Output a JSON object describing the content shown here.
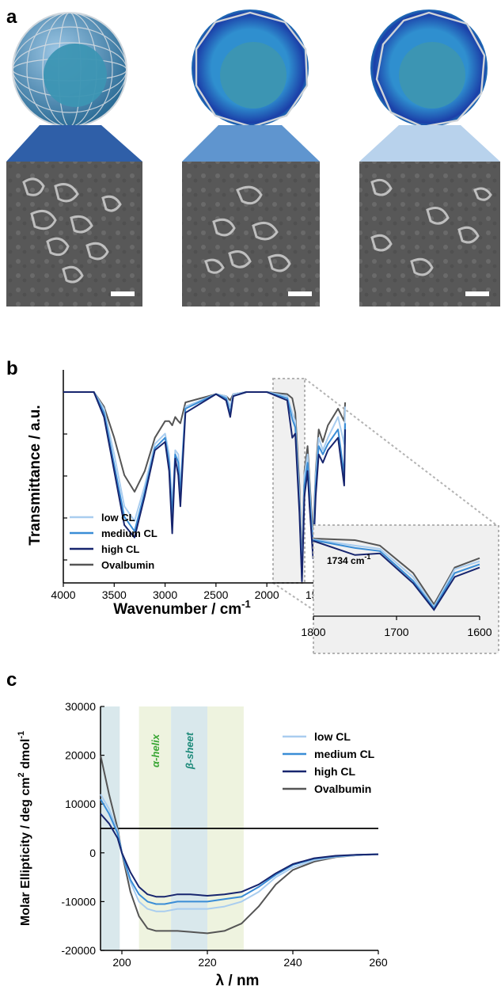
{
  "panel_labels": {
    "a": "a",
    "b": "b",
    "c": "c"
  },
  "colors": {
    "low": "#a9cdef",
    "medium": "#3a8dd6",
    "high": "#17256e",
    "ovalbumin": "#555555",
    "trap_low": "#2f5fa8",
    "trap_med": "#5f95cf",
    "trap_high": "#b8d2ec",
    "helix_band": "#eef3df",
    "sheet_band": "#d9e8ec",
    "helix_text": "#3aa635",
    "sheet_text": "#1d8a7a"
  },
  "chart_data": [
    {
      "id": "b",
      "type": "line",
      "ylabel": "Transmittance / a.u.",
      "xlabel": "Wavenumber / cm",
      "xlabel_sup": "-1",
      "xlim": [
        4000,
        1200
      ],
      "x_ticks": [
        4000,
        3500,
        3000,
        2500,
        2000,
        1500
      ],
      "legend": [
        "low CL",
        "medium CL",
        "high CL",
        "Ovalbumin"
      ],
      "inset": {
        "xlim": [
          1800,
          1600
        ],
        "x_ticks": [
          1800,
          1700,
          1600
        ],
        "annotation": "1734 cm",
        "annotation_sup": "-1"
      },
      "series": [
        {
          "name": "low CL",
          "x": [
            4000,
            3700,
            3600,
            3500,
            3400,
            3300,
            3200,
            3100,
            3000,
            2960,
            2930,
            2900,
            2870,
            2850,
            2800,
            2500,
            2400,
            2360,
            2330,
            2200,
            2000,
            1800,
            1750,
            1720,
            1680,
            1655,
            1630,
            1600,
            1580,
            1545,
            1520,
            1490,
            1450,
            1400,
            1300,
            1240,
            1230
          ],
          "y": [
            1.0,
            1.0,
            0.92,
            0.7,
            0.45,
            0.38,
            0.55,
            0.75,
            0.8,
            0.7,
            0.45,
            0.72,
            0.7,
            0.55,
            0.93,
            0.99,
            0.98,
            0.93,
            0.99,
            1.0,
            1.0,
            0.98,
            0.9,
            0.86,
            0.5,
            0.12,
            0.6,
            0.7,
            0.55,
            0.25,
            0.6,
            0.78,
            0.72,
            0.78,
            0.88,
            0.75,
            0.93
          ]
        },
        {
          "name": "medium CL",
          "x": [
            4000,
            3700,
            3600,
            3500,
            3400,
            3300,
            3200,
            3100,
            3000,
            2960,
            2930,
            2900,
            2870,
            2850,
            2800,
            2500,
            2400,
            2360,
            2330,
            2200,
            2000,
            1800,
            1750,
            1720,
            1680,
            1655,
            1630,
            1600,
            1580,
            1545,
            1520,
            1490,
            1450,
            1400,
            1300,
            1240,
            1230
          ],
          "y": [
            1.0,
            1.0,
            0.9,
            0.65,
            0.4,
            0.33,
            0.52,
            0.73,
            0.78,
            0.66,
            0.4,
            0.7,
            0.66,
            0.5,
            0.92,
            0.99,
            0.97,
            0.9,
            0.98,
            1.0,
            1.0,
            0.97,
            0.87,
            0.83,
            0.45,
            0.1,
            0.55,
            0.66,
            0.5,
            0.22,
            0.55,
            0.74,
            0.7,
            0.75,
            0.82,
            0.6,
            0.85
          ]
        },
        {
          "name": "high CL",
          "x": [
            4000,
            3700,
            3600,
            3500,
            3400,
            3300,
            3200,
            3100,
            3000,
            2960,
            2930,
            2900,
            2870,
            2850,
            2800,
            2500,
            2400,
            2360,
            2330,
            2200,
            2000,
            1800,
            1750,
            1720,
            1680,
            1655,
            1630,
            1600,
            1580,
            1545,
            1520,
            1490,
            1450,
            1400,
            1300,
            1240,
            1230
          ],
          "y": [
            1.0,
            1.0,
            0.88,
            0.62,
            0.36,
            0.3,
            0.5,
            0.72,
            0.76,
            0.62,
            0.32,
            0.68,
            0.6,
            0.45,
            0.9,
            0.99,
            0.96,
            0.88,
            0.98,
            1.0,
            1.0,
            0.96,
            0.78,
            0.8,
            0.42,
            0.08,
            0.5,
            0.62,
            0.45,
            0.2,
            0.5,
            0.7,
            0.66,
            0.72,
            0.78,
            0.55,
            0.82
          ]
        },
        {
          "name": "Ovalbumin",
          "x": [
            4000,
            3700,
            3600,
            3500,
            3400,
            3300,
            3200,
            3100,
            3000,
            2960,
            2930,
            2900,
            2870,
            2850,
            2800,
            2500,
            2400,
            2360,
            2330,
            2200,
            2000,
            1800,
            1750,
            1720,
            1680,
            1655,
            1630,
            1600,
            1580,
            1545,
            1520,
            1490,
            1450,
            1400,
            1300,
            1240,
            1230
          ],
          "y": [
            1.0,
            1.0,
            0.93,
            0.78,
            0.6,
            0.52,
            0.62,
            0.78,
            0.86,
            0.86,
            0.84,
            0.88,
            0.86,
            0.85,
            0.95,
            0.99,
            0.98,
            0.96,
            0.99,
            1.0,
            1.0,
            0.99,
            0.97,
            0.9,
            0.55,
            0.15,
            0.62,
            0.74,
            0.58,
            0.3,
            0.62,
            0.82,
            0.76,
            0.84,
            0.92,
            0.86,
            0.95
          ]
        }
      ]
    },
    {
      "id": "c",
      "type": "line",
      "ylabel": "Molar Ellipticity / deg cm",
      "ylabel_sup2": "2",
      "ylabel_tail": " dmol",
      "ylabel_sup1": "-1",
      "xlabel": "λ / nm",
      "xlim": [
        195,
        260
      ],
      "ylim": [
        -20000,
        30000
      ],
      "x_ticks": [
        200,
        220,
        240,
        260
      ],
      "y_ticks": [
        -20000,
        -10000,
        0,
        10000,
        20000,
        30000
      ],
      "bands": [
        {
          "label": "",
          "from": 195,
          "to": 199.5,
          "kind": "sheet"
        },
        {
          "label": "α-helix",
          "from": 204,
          "to": 211.5,
          "kind": "helix"
        },
        {
          "label": "β-sheet",
          "from": 211.5,
          "to": 220,
          "kind": "sheet"
        },
        {
          "label": "",
          "from": 220,
          "to": 228.5,
          "kind": "helix"
        }
      ],
      "legend": [
        "low CL",
        "medium CL",
        "high CL",
        "Ovalbumin"
      ],
      "series": [
        {
          "name": "low CL",
          "x": [
            195,
            197,
            199,
            200,
            202,
            204,
            206,
            208,
            210,
            213,
            216,
            220,
            224,
            228,
            232,
            236,
            240,
            245,
            250,
            255,
            260
          ],
          "y": [
            12000,
            9000,
            4500,
            0,
            -6000,
            -10000,
            -11500,
            -12000,
            -12000,
            -11500,
            -11500,
            -11500,
            -11000,
            -10000,
            -8000,
            -5000,
            -3000,
            -1500,
            -800,
            -500,
            -300
          ]
        },
        {
          "name": "medium CL",
          "x": [
            195,
            197,
            199,
            200,
            202,
            204,
            206,
            208,
            210,
            213,
            216,
            220,
            224,
            228,
            232,
            236,
            240,
            245,
            250,
            255,
            260
          ],
          "y": [
            11000,
            8000,
            4000,
            0,
            -5500,
            -8500,
            -10000,
            -10500,
            -10500,
            -10000,
            -10000,
            -10000,
            -9500,
            -9000,
            -7000,
            -4500,
            -2500,
            -1200,
            -700,
            -400,
            -300
          ]
        },
        {
          "name": "high CL",
          "x": [
            195,
            197,
            199,
            200,
            202,
            204,
            206,
            208,
            210,
            213,
            216,
            220,
            224,
            228,
            232,
            236,
            240,
            245,
            250,
            255,
            260
          ],
          "y": [
            8000,
            6000,
            3000,
            0,
            -4000,
            -7000,
            -8500,
            -9000,
            -9000,
            -8500,
            -8500,
            -8800,
            -8500,
            -8000,
            -6500,
            -4200,
            -2300,
            -1100,
            -600,
            -400,
            -300
          ]
        },
        {
          "name": "Ovalbumin",
          "x": [
            195,
            197,
            199,
            200,
            202,
            204,
            206,
            208,
            210,
            213,
            216,
            220,
            224,
            228,
            232,
            236,
            240,
            245,
            250,
            255,
            260
          ],
          "y": [
            20000,
            12000,
            5000,
            0,
            -8000,
            -13000,
            -15500,
            -16000,
            -16000,
            -16000,
            -16200,
            -16500,
            -16000,
            -14500,
            -11000,
            -6500,
            -3500,
            -1800,
            -900,
            -500,
            -300
          ]
        }
      ]
    }
  ]
}
